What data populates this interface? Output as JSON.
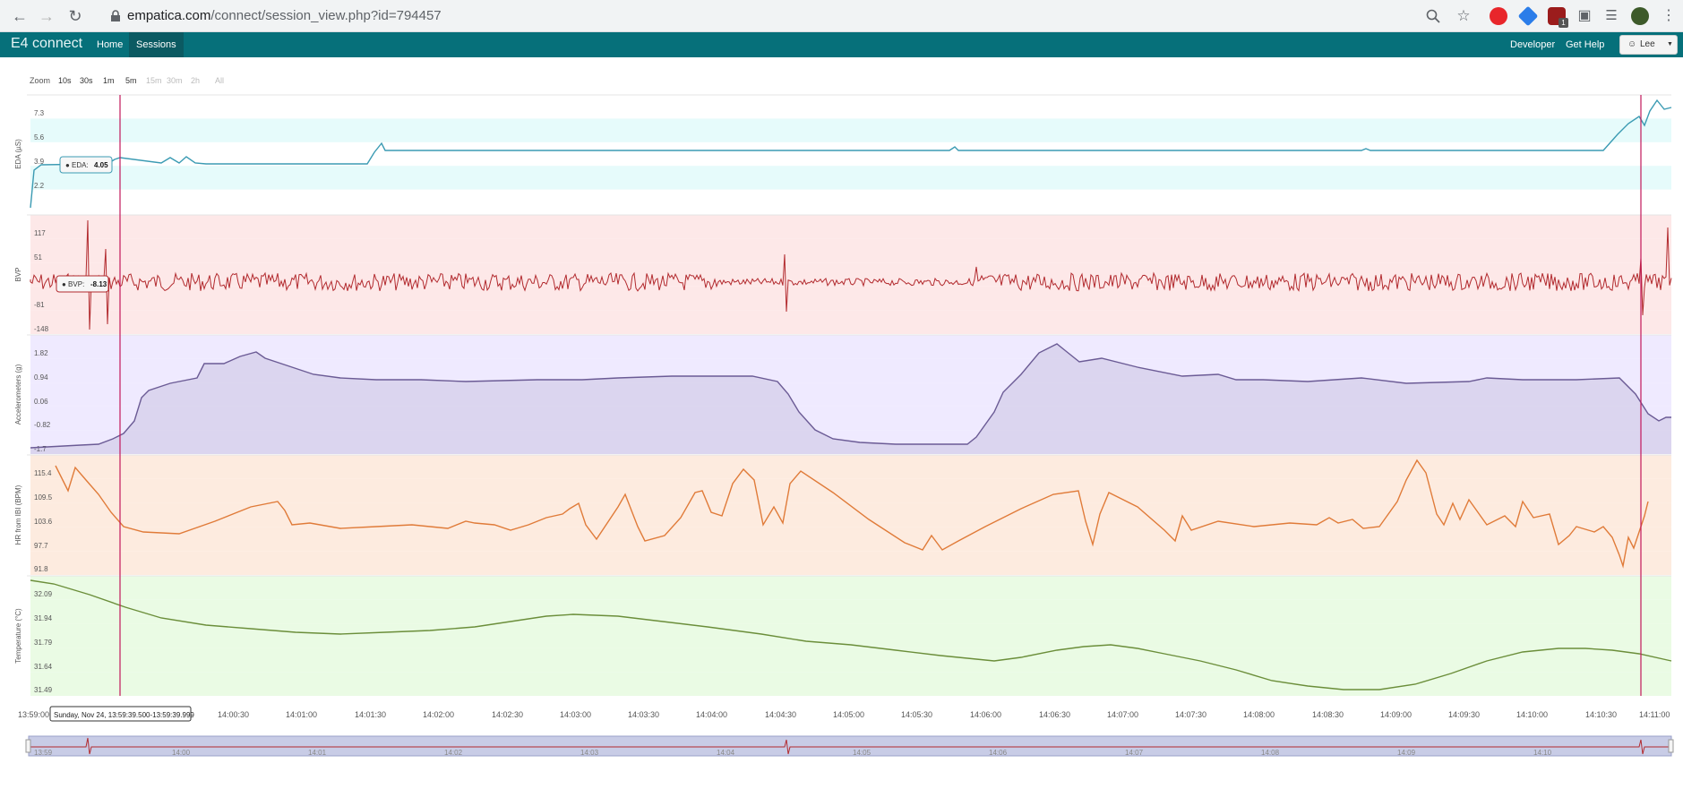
{
  "browser": {
    "url_host": "empatica.com",
    "url_path": "/connect/session_view.php?id=794457",
    "extension_badge": "1"
  },
  "app": {
    "brand": "E4 connect",
    "nav": [
      {
        "label": "Home",
        "active": false
      },
      {
        "label": "Sessions",
        "active": true
      }
    ],
    "right_links": [
      "Developer",
      "Get Help"
    ],
    "user_label": "Lee",
    "accent_color": "#06707a"
  },
  "zoom": {
    "label": "Zoom",
    "options": [
      {
        "label": "10s",
        "enabled": true
      },
      {
        "label": "30s",
        "enabled": true
      },
      {
        "label": "1m",
        "enabled": true
      },
      {
        "label": "5m",
        "enabled": true
      },
      {
        "label": "15m",
        "enabled": false
      },
      {
        "label": "30m",
        "enabled": false
      },
      {
        "label": "2h",
        "enabled": false
      },
      {
        "label": "All",
        "enabled": false
      }
    ]
  },
  "time_axis": {
    "ticks": [
      "13:59:00",
      "14:00:30",
      "14:01:00",
      "14:01:30",
      "14:02:00",
      "14:02:30",
      "14:03:00",
      "14:03:30",
      "14:04:00",
      "14:04:30",
      "14:05:00",
      "14:05:30",
      "14:06:00",
      "14:06:30",
      "14:07:00",
      "14:07:30",
      "14:08:00",
      "14:08:30",
      "14:09:00",
      "14:09:30",
      "14:10:00",
      "14:10:30",
      "14:11:00"
    ],
    "hover_label": "Sunday, Nov 24, 13:59:39.500-13:59:39.999"
  },
  "navigator": {
    "ticks": [
      "13:59",
      "14:00",
      "14:01",
      "14:02",
      "14:03",
      "14:04",
      "14:05",
      "14:06",
      "14:07",
      "14:08",
      "14:09",
      "14:10"
    ]
  },
  "chart_data": [
    {
      "type": "line",
      "ylabel": "EDA (µS)",
      "yticks": [
        "7.3",
        "5.6",
        "3.9",
        "2.2"
      ],
      "color": "#3b9bb3",
      "band_color": "#e6fbfb",
      "tooltip": {
        "label": "EDA:",
        "value": "4.05"
      },
      "series": [
        {
          "x_minutes_from_start": [
            0,
            0.3,
            1.5,
            3,
            4,
            7,
            8.5,
            10,
            12,
            12.8
          ],
          "values": [
            1.2,
            3.9,
            3.9,
            4.0,
            4.6,
            4.6,
            4.6,
            4.6,
            4.6,
            9.0
          ]
        }
      ]
    },
    {
      "type": "line",
      "ylabel": "BVP",
      "yticks": [
        "117",
        "51",
        "-81",
        "-148"
      ],
      "color": "#b22a2e",
      "band_color": "#fde8e8",
      "tooltip": {
        "label": "BVP:",
        "value": "-8.13"
      }
    },
    {
      "type": "area",
      "ylabel": "Accelerometers (g)",
      "yticks": [
        "1.82",
        "0.94",
        "0.06",
        "-0.82",
        "-1.7"
      ],
      "color": "#6b5b95",
      "band_color": "#efeaff",
      "series": [
        {
          "x_minutes_from_start": [
            0,
            0.8,
            1.5,
            2.3,
            4,
            6,
            7.2,
            7.7,
            9,
            9.7,
            11,
            12.2,
            12.8
          ],
          "values": [
            -1.7,
            -1.5,
            0.5,
            1.5,
            0.9,
            1.0,
            1.0,
            -1.4,
            -1.6,
            1.7,
            1.0,
            1.0,
            -0.4
          ]
        }
      ]
    },
    {
      "type": "line",
      "ylabel": "HR from IBI (BPM)",
      "yticks": [
        "115.4",
        "109.5",
        "103.6",
        "97.7",
        "91.8"
      ],
      "color": "#e07b39",
      "band_color": "#fdebdf"
    },
    {
      "type": "line",
      "ylabel": "Temperature (°C)",
      "yticks": [
        "32.09",
        "31.94",
        "31.79",
        "31.64",
        "31.49"
      ],
      "color": "#6b8e3a",
      "band_color": "#eafbe4"
    }
  ]
}
